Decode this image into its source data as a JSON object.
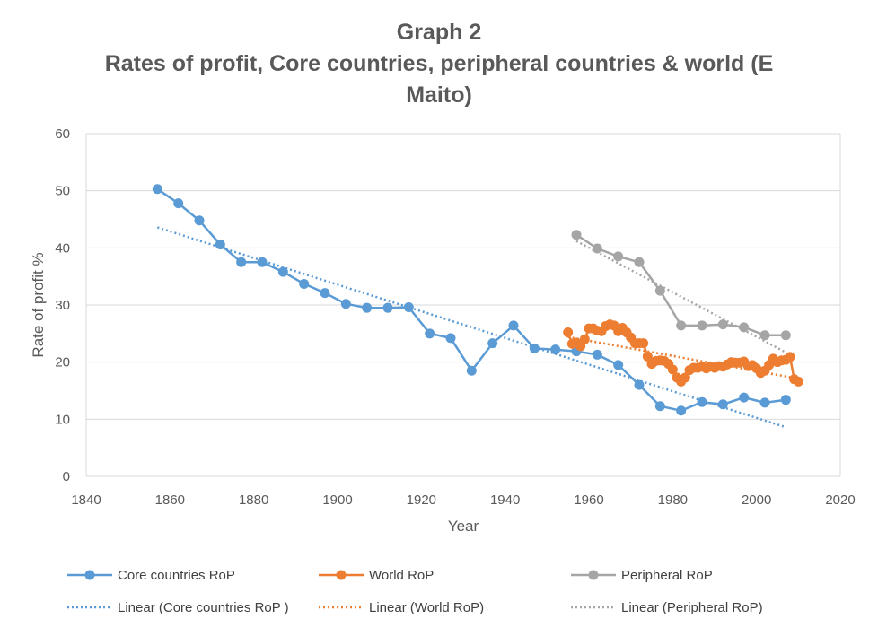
{
  "chart_data": {
    "type": "line",
    "title_lines": [
      "Graph 2",
      "Rates of profit, Core countries, peripheral countries & world (E",
      "Maito)"
    ],
    "xlabel": "Year",
    "ylabel": "Rate of profit %",
    "xlim": [
      1840,
      2020
    ],
    "ylim": [
      0,
      60
    ],
    "xticks": [
      1840,
      1860,
      1880,
      1900,
      1920,
      1940,
      1960,
      1980,
      2000,
      2020
    ],
    "yticks": [
      0,
      10,
      20,
      30,
      40,
      50,
      60
    ],
    "grid": "horizontal",
    "legend_position": "bottom",
    "series": [
      {
        "name": "Core countries RoP",
        "color": "#5B9BD5",
        "x": [
          1857,
          1862,
          1867,
          1872,
          1877,
          1882,
          1887,
          1892,
          1897,
          1902,
          1907,
          1912,
          1917,
          1922,
          1927,
          1932,
          1937,
          1942,
          1947,
          1952,
          1957,
          1962,
          1967,
          1972,
          1977,
          1982,
          1987,
          1992,
          1997,
          2002,
          2007
        ],
        "y": [
          50.3,
          47.8,
          44.8,
          40.6,
          37.5,
          37.5,
          35.8,
          33.7,
          32.1,
          30.2,
          29.5,
          29.5,
          29.6,
          25.0,
          24.2,
          18.5,
          23.3,
          26.4,
          22.4,
          22.2,
          21.9,
          21.3,
          19.5,
          16.0,
          12.3,
          11.5,
          13.0,
          12.6,
          13.8,
          12.9,
          13.4
        ]
      },
      {
        "name": "World RoP",
        "color": "#ED7D31",
        "x": [
          1955,
          1956,
          1957,
          1958,
          1959,
          1960,
          1961,
          1962,
          1963,
          1964,
          1965,
          1966,
          1967,
          1968,
          1969,
          1970,
          1971,
          1972,
          1973,
          1974,
          1975,
          1976,
          1977,
          1978,
          1979,
          1980,
          1981,
          1982,
          1983,
          1984,
          1985,
          1986,
          1987,
          1988,
          1989,
          1990,
          1991,
          1992,
          1993,
          1994,
          1995,
          1996,
          1997,
          1998,
          1999,
          2000,
          2001,
          2002,
          2003,
          2004,
          2005,
          2006,
          2007,
          2008,
          2009,
          2010
        ],
        "y": [
          25.2,
          23.2,
          23.4,
          22.8,
          24.0,
          25.9,
          25.9,
          25.5,
          25.4,
          26.3,
          26.6,
          26.4,
          25.4,
          26.0,
          25.2,
          24.3,
          23.3,
          23.3,
          23.3,
          21.0,
          19.7,
          20.2,
          20.3,
          20.2,
          19.7,
          18.7,
          17.3,
          16.6,
          17.3,
          18.6,
          19.0,
          19.0,
          19.2,
          18.9,
          19.2,
          19.0,
          19.3,
          19.2,
          19.6,
          20.0,
          19.9,
          19.9,
          20.1,
          19.3,
          19.5,
          18.9,
          18.1,
          18.5,
          19.5,
          20.6,
          20.0,
          20.3,
          20.4,
          20.9,
          17.0,
          16.6
        ]
      },
      {
        "name": "Peripheral RoP",
        "color": "#A5A5A5",
        "x": [
          1957,
          1962,
          1967,
          1972,
          1977,
          1982,
          1987,
          1992,
          1997,
          2002,
          2007
        ],
        "y": [
          42.3,
          39.9,
          38.5,
          37.5,
          32.5,
          26.4,
          26.4,
          26.6,
          26.1,
          24.7,
          24.7
        ]
      }
    ],
    "trendlines": [
      {
        "name": "Linear (Core countries RoP )",
        "color": "#5B9BD5",
        "x": [
          1857,
          2007
        ],
        "y": [
          43.6,
          8.6
        ]
      },
      {
        "name": "Linear (World RoP)",
        "color": "#ED7D31",
        "x": [
          1955,
          2010
        ],
        "y": [
          24.4,
          17.1
        ]
      },
      {
        "name": "Linear (Peripheral RoP)",
        "color": "#A5A5A5",
        "x": [
          1957,
          2007
        ],
        "y": [
          41.2,
          21.7
        ]
      }
    ]
  }
}
